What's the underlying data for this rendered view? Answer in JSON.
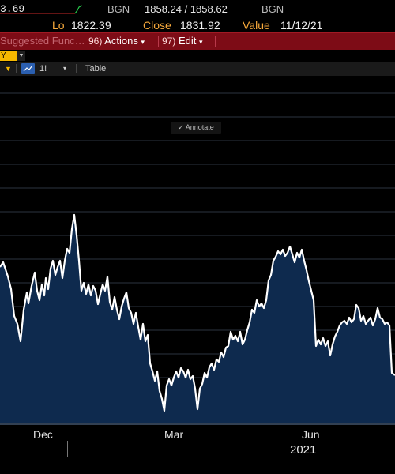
{
  "header": {
    "open_partial": "3.69",
    "source1": "BGN",
    "bid_ask": "1858.24 / 1858.62",
    "source2": "BGN",
    "lo_label": "Lo",
    "lo_value": "1822.39",
    "close_label": "Close",
    "close_value": "1831.92",
    "value_label": "Value",
    "value_date": "11/12/21"
  },
  "toolbar": {
    "ghost_text": "Suggested Func…",
    "actions_num": "96)",
    "actions_label": "Actions",
    "edit_num": "97)",
    "edit_label": "Edit",
    "caret": "▾"
  },
  "period": {
    "selected": "Y"
  },
  "chart_toolbar": {
    "interval": "1!",
    "table_label": "Table",
    "annotate_label": "Annotate"
  },
  "chart_data": {
    "type": "area",
    "title": "",
    "xlabel": "",
    "ylabel": "",
    "x_tick_labels": [
      "Dec",
      "Mar",
      "Jun"
    ],
    "x_year_label": "2021",
    "grid": "horizontal",
    "colors": {
      "line": "#ffffff",
      "fill": "#0e2a4e",
      "grid": "#2d3440",
      "background": "#000000"
    },
    "points": [
      [
        0,
        338
      ],
      [
        4,
        332
      ],
      [
        10,
        350
      ],
      [
        14,
        366
      ],
      [
        18,
        400
      ],
      [
        22,
        410
      ],
      [
        26,
        432
      ],
      [
        30,
        392
      ],
      [
        34,
        370
      ],
      [
        36,
        384
      ],
      [
        40,
        362
      ],
      [
        44,
        345
      ],
      [
        47,
        368
      ],
      [
        50,
        380
      ],
      [
        53,
        360
      ],
      [
        56,
        374
      ],
      [
        58,
        352
      ],
      [
        61,
        366
      ],
      [
        64,
        340
      ],
      [
        67,
        330
      ],
      [
        70,
        348
      ],
      [
        73,
        338
      ],
      [
        76,
        330
      ],
      [
        79,
        352
      ],
      [
        82,
        330
      ],
      [
        85,
        315
      ],
      [
        88,
        320
      ],
      [
        91,
        290
      ],
      [
        94,
        272
      ],
      [
        97,
        298
      ],
      [
        100,
        330
      ],
      [
        103,
        368
      ],
      [
        106,
        358
      ],
      [
        109,
        372
      ],
      [
        112,
        360
      ],
      [
        115,
        374
      ],
      [
        118,
        362
      ],
      [
        121,
        368
      ],
      [
        124,
        385
      ],
      [
        127,
        372
      ],
      [
        130,
        360
      ],
      [
        133,
        368
      ],
      [
        136,
        350
      ],
      [
        139,
        382
      ],
      [
        142,
        392
      ],
      [
        145,
        376
      ],
      [
        148,
        392
      ],
      [
        151,
        404
      ],
      [
        154,
        388
      ],
      [
        157,
        378
      ],
      [
        160,
        370
      ],
      [
        163,
        390
      ],
      [
        166,
        396
      ],
      [
        169,
        410
      ],
      [
        172,
        396
      ],
      [
        175,
        414
      ],
      [
        178,
        430
      ],
      [
        181,
        410
      ],
      [
        184,
        432
      ],
      [
        187,
        424
      ],
      [
        190,
        460
      ],
      [
        193,
        470
      ],
      [
        196,
        482
      ],
      [
        199,
        470
      ],
      [
        202,
        495
      ],
      [
        205,
        505
      ],
      [
        208,
        520
      ],
      [
        211,
        488
      ],
      [
        214,
        480
      ],
      [
        217,
        488
      ],
      [
        220,
        478
      ],
      [
        223,
        470
      ],
      [
        226,
        478
      ],
      [
        229,
        466
      ],
      [
        232,
        470
      ],
      [
        235,
        478
      ],
      [
        238,
        468
      ],
      [
        241,
        480
      ],
      [
        244,
        476
      ],
      [
        247,
        492
      ],
      [
        250,
        518
      ],
      [
        253,
        492
      ],
      [
        256,
        486
      ],
      [
        259,
        472
      ],
      [
        262,
        478
      ],
      [
        265,
        465
      ],
      [
        268,
        460
      ],
      [
        271,
        468
      ],
      [
        274,
        455
      ],
      [
        277,
        458
      ],
      [
        280,
        446
      ],
      [
        283,
        452
      ],
      [
        286,
        440
      ],
      [
        289,
        438
      ],
      [
        292,
        420
      ],
      [
        295,
        430
      ],
      [
        298,
        425
      ],
      [
        301,
        432
      ],
      [
        304,
        420
      ],
      [
        307,
        436
      ],
      [
        310,
        430
      ],
      [
        313,
        418
      ],
      [
        316,
        408
      ],
      [
        319,
        392
      ],
      [
        322,
        396
      ],
      [
        325,
        380
      ],
      [
        328,
        388
      ],
      [
        331,
        384
      ],
      [
        334,
        390
      ],
      [
        337,
        380
      ],
      [
        340,
        355
      ],
      [
        343,
        348
      ],
      [
        346,
        330
      ],
      [
        349,
        325
      ],
      [
        352,
        318
      ],
      [
        355,
        322
      ],
      [
        358,
        316
      ],
      [
        361,
        324
      ],
      [
        364,
        320
      ],
      [
        367,
        312
      ],
      [
        370,
        322
      ],
      [
        373,
        332
      ],
      [
        376,
        320
      ],
      [
        379,
        326
      ],
      [
        382,
        316
      ],
      [
        385,
        330
      ],
      [
        388,
        342
      ],
      [
        391,
        356
      ],
      [
        394,
        368
      ],
      [
        397,
        380
      ],
      [
        400,
        438
      ],
      [
        403,
        430
      ],
      [
        406,
        436
      ],
      [
        409,
        428
      ],
      [
        412,
        438
      ],
      [
        415,
        432
      ],
      [
        418,
        450
      ],
      [
        421,
        436
      ],
      [
        424,
        426
      ],
      [
        427,
        420
      ],
      [
        430,
        412
      ],
      [
        433,
        408
      ],
      [
        436,
        406
      ],
      [
        439,
        410
      ],
      [
        442,
        402
      ],
      [
        445,
        408
      ],
      [
        448,
        404
      ],
      [
        451,
        386
      ],
      [
        454,
        390
      ],
      [
        457,
        406
      ],
      [
        460,
        400
      ],
      [
        463,
        410
      ],
      [
        466,
        406
      ],
      [
        469,
        402
      ],
      [
        472,
        412
      ],
      [
        475,
        404
      ],
      [
        478,
        390
      ],
      [
        481,
        402
      ],
      [
        484,
        404
      ],
      [
        487,
        410
      ],
      [
        490,
        408
      ],
      [
        493,
        412
      ],
      [
        496,
        472
      ],
      [
        500,
        475
      ]
    ]
  }
}
